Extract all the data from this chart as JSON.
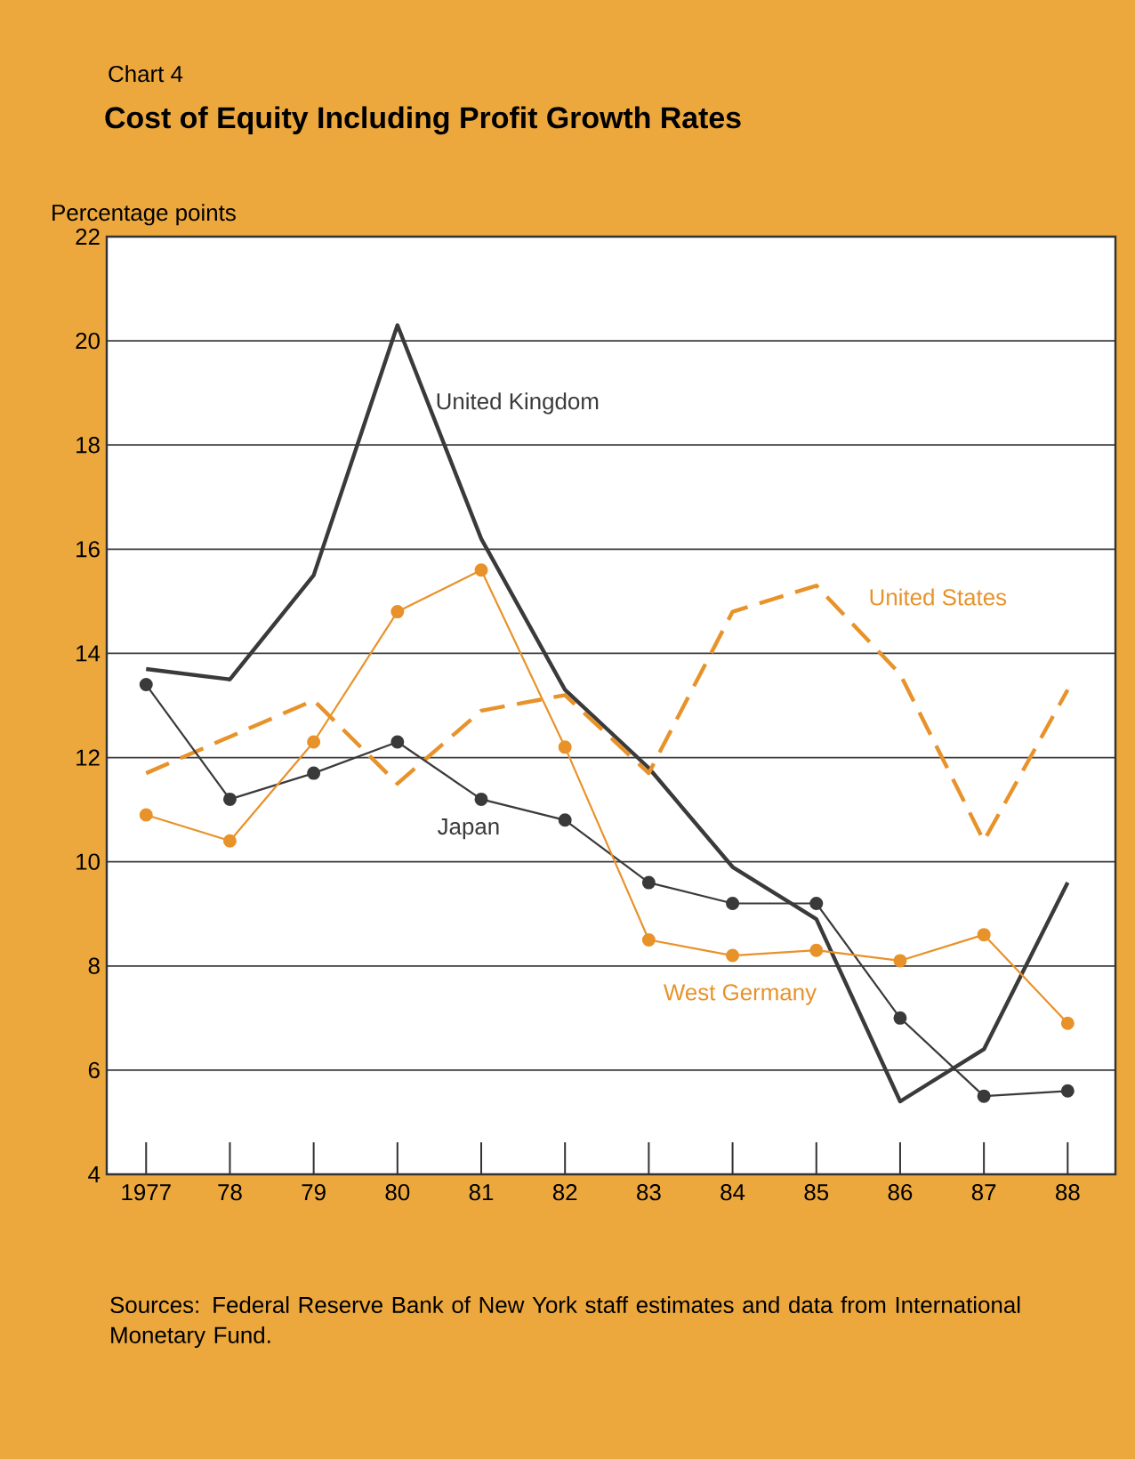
{
  "chart_data": {
    "type": "line",
    "subtitle": "Chart 4",
    "title": "Cost of Equity Including Profit Growth Rates",
    "ylabel": "Percentage points",
    "categories": [
      "1977",
      "78",
      "79",
      "80",
      "81",
      "82",
      "83",
      "84",
      "85",
      "86",
      "87",
      "88"
    ],
    "ylim": [
      4,
      22
    ],
    "yticks": [
      4,
      6,
      8,
      10,
      12,
      14,
      16,
      18,
      20,
      22
    ],
    "grid": "y",
    "legend": false,
    "series": [
      {
        "name": "United Kingdom",
        "color": "#3a3a3a",
        "line_style": "solid",
        "marker": "none",
        "values": [
          13.7,
          13.5,
          15.5,
          20.3,
          16.2,
          13.3,
          11.8,
          9.9,
          8.9,
          5.4,
          6.4,
          9.6
        ]
      },
      {
        "name": "United States",
        "color": "#e8922a",
        "line_style": "dashed",
        "marker": "none",
        "values": [
          11.7,
          12.4,
          13.1,
          11.5,
          12.9,
          13.2,
          11.7,
          14.8,
          15.3,
          13.6,
          10.4,
          13.3
        ]
      },
      {
        "name": "Japan",
        "color": "#3a3a3a",
        "line_style": "solid",
        "marker": "circle",
        "values": [
          13.4,
          11.2,
          11.7,
          12.3,
          11.2,
          10.8,
          9.6,
          9.2,
          9.2,
          7.0,
          5.5,
          5.6
        ]
      },
      {
        "name": "West Germany",
        "color": "#e8922a",
        "line_style": "solid",
        "marker": "circle",
        "values": [
          10.9,
          10.4,
          12.3,
          14.8,
          15.6,
          12.2,
          8.5,
          8.2,
          8.3,
          8.1,
          8.6,
          6.9
        ]
      }
    ],
    "annotations": [
      "Sources:  Federal Reserve Bank of New York staff estimates and data from International Monetary Fund."
    ]
  }
}
